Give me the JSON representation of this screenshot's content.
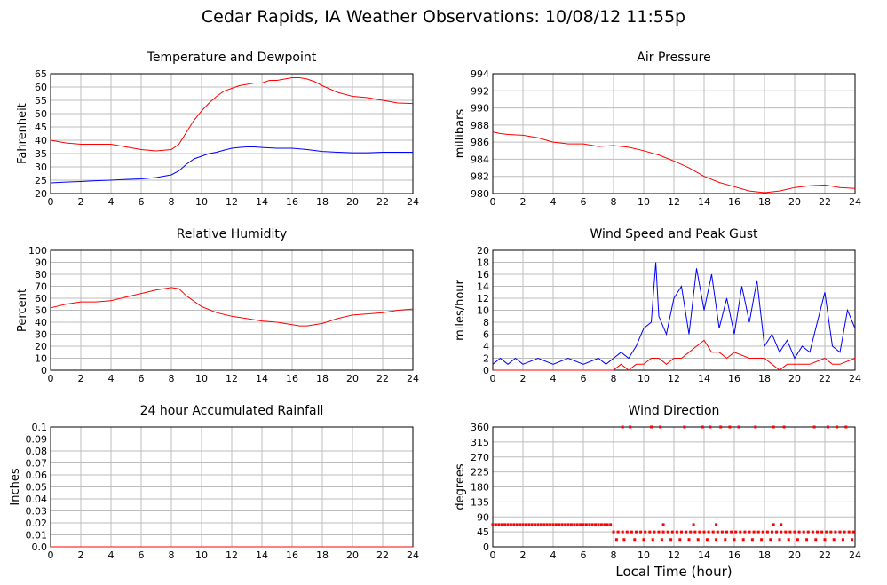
{
  "page": {
    "title": "Cedar Rapids, IA Weather Observations: 10/08/12 11:55p",
    "shared_xlabel": "Local Time (hour)"
  },
  "colors": {
    "primary": "#ff0000",
    "secondary": "#0000ff",
    "grid": "#bdbdbd",
    "frame": "#000000"
  },
  "chart_data": [
    {
      "id": "temp",
      "type": "line",
      "title": "Temperature and Dewpoint",
      "xlabel": "",
      "ylabel": "Fahrenheit",
      "xlim": [
        0,
        24
      ],
      "ylim": [
        20,
        65
      ],
      "xticks": [
        0,
        2,
        4,
        6,
        8,
        10,
        12,
        14,
        16,
        18,
        20,
        22,
        24
      ],
      "yticks": [
        20,
        25,
        30,
        35,
        40,
        45,
        50,
        55,
        60,
        65
      ],
      "grid": true,
      "series": [
        {
          "color": "#ff0000",
          "x": [
            0,
            1,
            2,
            3,
            4,
            5,
            6,
            7,
            8,
            8.5,
            9,
            9.5,
            10,
            10.5,
            11,
            11.5,
            12,
            12.5,
            13,
            13.5,
            14,
            14.5,
            15,
            15.5,
            16,
            16.5,
            17,
            17.5,
            18,
            19,
            20,
            21,
            22,
            23,
            24
          ],
          "y": [
            40,
            39,
            38.5,
            38.5,
            38.5,
            37.5,
            36.5,
            36,
            36.5,
            38.5,
            43,
            47.5,
            51,
            54,
            56.5,
            58.5,
            59.5,
            60.5,
            61,
            61.5,
            61.5,
            62.5,
            62.5,
            63,
            63.5,
            63.5,
            63,
            62,
            60.5,
            58,
            56.5,
            56,
            55,
            54,
            53.8
          ]
        },
        {
          "color": "#0000ff",
          "x": [
            0,
            1,
            2,
            3,
            4,
            5,
            6,
            7,
            8,
            8.5,
            9,
            9.5,
            10,
            10.5,
            11,
            11.5,
            12,
            12.5,
            13,
            13.5,
            14,
            15,
            16,
            17,
            18,
            19,
            20,
            21,
            22,
            23,
            24
          ],
          "y": [
            24,
            24.3,
            24.5,
            24.8,
            25,
            25.3,
            25.5,
            26,
            27,
            28.5,
            31,
            33,
            34,
            35,
            35.5,
            36.3,
            37,
            37.3,
            37.5,
            37.5,
            37.3,
            37,
            37,
            36.5,
            35.8,
            35.5,
            35.3,
            35.3,
            35.5,
            35.5,
            35.5
          ]
        }
      ]
    },
    {
      "id": "pressure",
      "type": "line",
      "title": "Air Pressure",
      "xlabel": "",
      "ylabel": "millibars",
      "xlim": [
        0,
        24
      ],
      "ylim": [
        980,
        994
      ],
      "xticks": [
        0,
        2,
        4,
        6,
        8,
        10,
        12,
        14,
        16,
        18,
        20,
        22,
        24
      ],
      "yticks": [
        980,
        982,
        984,
        986,
        988,
        990,
        992,
        994
      ],
      "grid": true,
      "series": [
        {
          "color": "#ff0000",
          "x": [
            0,
            0.5,
            1,
            2,
            3,
            4,
            5,
            6,
            7,
            8,
            9,
            10,
            11,
            12,
            13,
            14,
            15,
            16,
            17,
            18,
            19,
            20,
            21,
            22,
            23,
            24
          ],
          "y": [
            987.2,
            987,
            986.9,
            986.8,
            986.5,
            986,
            985.8,
            985.8,
            985.5,
            985.6,
            985.4,
            985,
            984.5,
            983.8,
            983,
            982,
            981.3,
            980.8,
            980.3,
            980.1,
            980.3,
            980.7,
            980.9,
            981,
            980.7,
            980.6
          ]
        }
      ]
    },
    {
      "id": "humidity",
      "type": "line",
      "title": "Relative Humidity",
      "xlabel": "",
      "ylabel": "Percent",
      "xlim": [
        0,
        24
      ],
      "ylim": [
        0,
        100
      ],
      "xticks": [
        0,
        2,
        4,
        6,
        8,
        10,
        12,
        14,
        16,
        18,
        20,
        22,
        24
      ],
      "yticks": [
        0,
        10,
        20,
        30,
        40,
        50,
        60,
        70,
        80,
        90,
        100
      ],
      "grid": true,
      "series": [
        {
          "color": "#ff0000",
          "x": [
            0,
            1,
            2,
            3,
            4,
            5,
            6,
            7,
            8,
            8.5,
            9,
            10,
            11,
            12,
            13,
            14,
            15,
            16,
            16.5,
            17,
            18,
            19,
            20,
            21,
            22,
            23,
            24
          ],
          "y": [
            52,
            55,
            57,
            57,
            58,
            61,
            64,
            67,
            69,
            68,
            62,
            53,
            48,
            45,
            43,
            41,
            40,
            38,
            37,
            37,
            39,
            43,
            46,
            47,
            48,
            50,
            51
          ]
        }
      ]
    },
    {
      "id": "wind",
      "type": "line",
      "title": "Wind Speed and Peak Gust",
      "xlabel": "",
      "ylabel": "miles/hour",
      "xlim": [
        0,
        24
      ],
      "ylim": [
        0,
        20
      ],
      "xticks": [
        0,
        2,
        4,
        6,
        8,
        10,
        12,
        14,
        16,
        18,
        20,
        22,
        24
      ],
      "yticks": [
        0,
        2,
        4,
        6,
        8,
        10,
        12,
        14,
        16,
        18,
        20
      ],
      "grid": true,
      "series": [
        {
          "color": "#0000ff",
          "x": [
            0,
            0.5,
            1,
            1.5,
            2,
            3,
            4,
            5,
            6,
            7,
            7.5,
            8,
            8.5,
            9,
            9.5,
            10,
            10.5,
            10.8,
            11,
            11.5,
            12,
            12.5,
            13,
            13.5,
            14,
            14.5,
            15,
            15.5,
            16,
            16.5,
            17,
            17.5,
            18,
            18.5,
            19,
            19.5,
            20,
            20.5,
            21,
            21.5,
            22,
            22.5,
            23,
            23.5,
            24
          ],
          "y": [
            1,
            2,
            1,
            2,
            1,
            2,
            1,
            2,
            1,
            2,
            1,
            2,
            3,
            2,
            4,
            7,
            8,
            18,
            9,
            6,
            12,
            14,
            6,
            17,
            10,
            16,
            7,
            12,
            6,
            14,
            8,
            15,
            4,
            6,
            3,
            5,
            2,
            4,
            3,
            8,
            13,
            4,
            3,
            10,
            7
          ]
        },
        {
          "color": "#ff0000",
          "x": [
            0,
            8,
            8.5,
            9,
            9.5,
            10,
            10.5,
            11,
            11.5,
            12,
            12.5,
            13,
            13.5,
            14,
            14.5,
            15,
            15.5,
            16,
            17,
            18,
            18.5,
            19,
            19.5,
            20,
            21,
            22,
            22.5,
            23,
            24
          ],
          "y": [
            0,
            0,
            1,
            0,
            1,
            1,
            2,
            2,
            1,
            2,
            2,
            3,
            4,
            5,
            3,
            3,
            2,
            3,
            2,
            2,
            1,
            0,
            1,
            1,
            1,
            2,
            1,
            1,
            2
          ]
        }
      ]
    },
    {
      "id": "rain",
      "type": "line",
      "title": "24 hour Accumulated Rainfall",
      "xlabel": "",
      "ylabel": "Inches",
      "xlim": [
        0,
        24
      ],
      "ylim": [
        0,
        0.1
      ],
      "xticks": [
        0,
        2,
        4,
        6,
        8,
        10,
        12,
        14,
        16,
        18,
        20,
        22,
        24
      ],
      "yticks": [
        0.0,
        0.01,
        0.02,
        0.03,
        0.04,
        0.05,
        0.06,
        0.07,
        0.08,
        0.09,
        0.1
      ],
      "yticklabels": [
        "0.0",
        "0.01",
        "0.02",
        "0.03",
        "0.04",
        "0.05",
        "0.06",
        "0.07",
        "0.08",
        "0.09",
        "0.1"
      ],
      "grid": true,
      "series": [
        {
          "color": "#ff0000",
          "x": [
            0,
            24
          ],
          "y": [
            0,
            0
          ]
        }
      ]
    },
    {
      "id": "direction",
      "type": "scatter",
      "title": "Wind Direction",
      "xlabel": "Local Time (hour)",
      "ylabel": "degrees",
      "xlim": [
        0,
        24
      ],
      "ylim": [
        0,
        360
      ],
      "xticks": [
        0,
        2,
        4,
        6,
        8,
        10,
        12,
        14,
        16,
        18,
        20,
        22,
        24
      ],
      "yticks": [
        0,
        45,
        90,
        135,
        180,
        225,
        270,
        315,
        360
      ],
      "grid": true,
      "series": [
        {
          "color": "#ff0000",
          "x": [
            0,
            0.2,
            0.4,
            0.6,
            0.8,
            1,
            1.2,
            1.4,
            1.6,
            1.8,
            2,
            2.2,
            2.4,
            2.6,
            2.8,
            3,
            3.2,
            3.4,
            3.6,
            3.8,
            4,
            4.2,
            4.4,
            4.6,
            4.8,
            5,
            5.2,
            5.4,
            5.6,
            5.8,
            6,
            6.2,
            6.4,
            6.6,
            6.8,
            7,
            7.2,
            7.4,
            7.6,
            7.8,
            8,
            8.3,
            8.6,
            8.9,
            9.2,
            9.5,
            9.8,
            10.1,
            10.4,
            10.7,
            11,
            11.3,
            11.6,
            11.9,
            12.2,
            12.5,
            12.8,
            13.1,
            13.4,
            13.7,
            14,
            14.3,
            14.6,
            14.9,
            15.2,
            15.5,
            15.8,
            16.1,
            16.4,
            16.7,
            17,
            17.3,
            17.6,
            17.9,
            18.2,
            18.5,
            18.8,
            19.1,
            19.4,
            19.7,
            20,
            20.3,
            20.6,
            20.9,
            21.2,
            21.5,
            21.8,
            22.1,
            22.4,
            22.7,
            23,
            23.3,
            23.6,
            23.9,
            8.2,
            8.7,
            9.4,
            10,
            10.6,
            11.2,
            11.8,
            12.4,
            13,
            13.6,
            14.2,
            14.8,
            15.4,
            16,
            16.6,
            17.2,
            17.8,
            18.4,
            19,
            19.6,
            20.2,
            20.8,
            21.4,
            22,
            22.6,
            23.2,
            23.8,
            8.6,
            9.1,
            10.5,
            11.1,
            12.7,
            13.9,
            14.4,
            15.1,
            15.7,
            16.3,
            17.4,
            18.6,
            19.3,
            21.3,
            22.2,
            22.8,
            23.4,
            11.3,
            13.3,
            14.8,
            18.6,
            19.1
          ],
          "y": [
            67,
            67,
            67,
            67,
            67,
            67,
            67,
            67,
            67,
            67,
            67,
            67,
            67,
            67,
            67,
            67,
            67,
            67,
            67,
            67,
            67,
            67,
            67,
            67,
            67,
            67,
            67,
            67,
            67,
            67,
            67,
            67,
            67,
            67,
            67,
            67,
            67,
            67,
            67,
            67,
            45,
            45,
            45,
            45,
            45,
            45,
            45,
            45,
            45,
            45,
            45,
            45,
            45,
            45,
            45,
            45,
            45,
            45,
            45,
            45,
            45,
            45,
            45,
            45,
            45,
            45,
            45,
            45,
            45,
            45,
            45,
            45,
            45,
            45,
            45,
            45,
            45,
            45,
            45,
            45,
            45,
            45,
            45,
            45,
            45,
            45,
            45,
            45,
            45,
            45,
            45,
            45,
            45,
            45,
            22,
            22,
            22,
            22,
            22,
            22,
            22,
            22,
            22,
            22,
            22,
            22,
            22,
            22,
            22,
            22,
            22,
            22,
            22,
            22,
            22,
            22,
            22,
            22,
            22,
            22,
            22,
            360,
            360,
            360,
            360,
            360,
            360,
            360,
            360,
            360,
            360,
            360,
            360,
            360,
            360,
            360,
            360,
            360,
            67,
            67,
            67,
            67,
            67
          ]
        }
      ]
    }
  ]
}
